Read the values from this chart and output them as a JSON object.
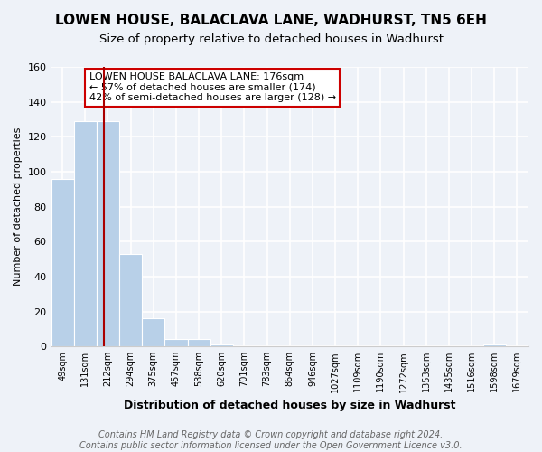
{
  "title": "LOWEN HOUSE, BALACLAVA LANE, WADHURST, TN5 6EH",
  "subtitle": "Size of property relative to detached houses in Wadhurst",
  "xlabel": "Distribution of detached houses by size in Wadhurst",
  "ylabel": "Number of detached properties",
  "bin_labels": [
    "49sqm",
    "131sqm",
    "212sqm",
    "294sqm",
    "375sqm",
    "457sqm",
    "538sqm",
    "620sqm",
    "701sqm",
    "783sqm",
    "864sqm",
    "946sqm",
    "1027sqm",
    "1109sqm",
    "1190sqm",
    "1272sqm",
    "1353sqm",
    "1435sqm",
    "1516sqm",
    "1598sqm",
    "1679sqm"
  ],
  "bar_heights": [
    96,
    129,
    129,
    53,
    16,
    4,
    4,
    1,
    0,
    0,
    0,
    0,
    0,
    0,
    0,
    0,
    0,
    0,
    0,
    1,
    0
  ],
  "bar_color": "#b8d0e8",
  "vline_x": 1.82,
  "vline_color": "#aa0000",
  "annotation_text": "LOWEN HOUSE BALACLAVA LANE: 176sqm\n← 57% of detached houses are smaller (174)\n42% of semi-detached houses are larger (128) →",
  "ylim": [
    0,
    160
  ],
  "yticks": [
    0,
    20,
    40,
    60,
    80,
    100,
    120,
    140,
    160
  ],
  "footer_text": "Contains HM Land Registry data © Crown copyright and database right 2024.\nContains public sector information licensed under the Open Government Licence v3.0.",
  "background_color": "#eef2f8",
  "grid_color": "#ffffff",
  "title_fontsize": 11,
  "subtitle_fontsize": 9.5,
  "annotation_fontsize": 8,
  "footer_fontsize": 7,
  "xlabel_fontsize": 9,
  "ylabel_fontsize": 8
}
